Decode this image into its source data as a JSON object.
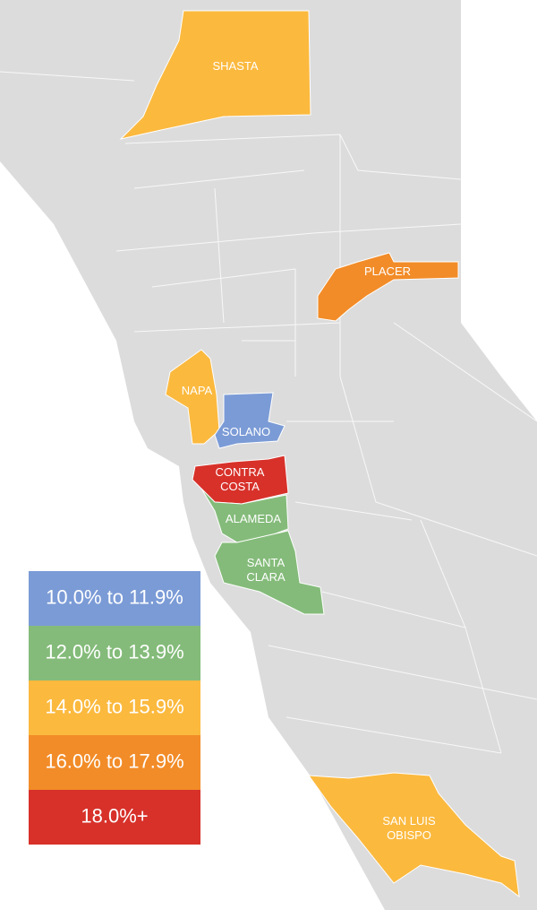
{
  "counties": [
    {
      "label": [
        "SHASTA"
      ],
      "color": "#fbb93e"
    },
    {
      "label": [
        "PLACER"
      ],
      "color": "#f28c28"
    },
    {
      "label": [
        "NAPA"
      ],
      "color": "#fbb93e"
    },
    {
      "label": [
        "SOLANO"
      ],
      "color": "#7b9bd6"
    },
    {
      "label": [
        "CONTRA",
        "COSTA"
      ],
      "color": "#d7312a"
    },
    {
      "label": [
        "ALAMEDA"
      ],
      "color": "#84bb7a"
    },
    {
      "label": [
        "SANTA",
        "CLARA"
      ],
      "color": "#84bb7a"
    },
    {
      "label": [
        "SAN LUIS",
        "OBISPO"
      ],
      "color": "#fbb93e"
    }
  ],
  "legend": [
    {
      "label": "10.0% to 11.9%",
      "color": "#7b9bd6"
    },
    {
      "label": "12.0% to 13.9%",
      "color": "#84bb7a"
    },
    {
      "label": "14.0% to 15.9%",
      "color": "#fbb93e"
    },
    {
      "label": "16.0% to 17.9%",
      "color": "#f28c28"
    },
    {
      "label": "18.0%+",
      "color": "#d7312a"
    }
  ]
}
